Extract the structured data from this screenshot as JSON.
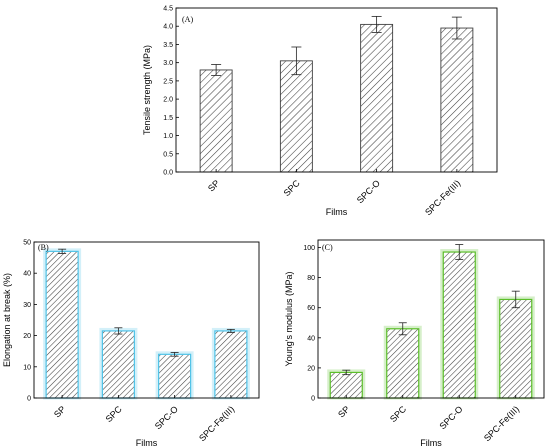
{
  "chart_data": [
    {
      "panel": "(A)",
      "type": "bar",
      "categories": [
        "SP",
        "SPC",
        "SPC-O",
        "SPC-Fe(III)"
      ],
      "values": [
        2.8,
        3.05,
        4.05,
        3.95
      ],
      "errors": [
        0.15,
        0.38,
        0.22,
        0.3
      ],
      "xlabel": "Films",
      "ylabel": "Tensile strength (MPa)",
      "ylim": [
        0.0,
        4.5
      ],
      "yticks": [
        "0.0",
        "0.5",
        "1.0",
        "1.5",
        "2.0",
        "2.5",
        "3.0",
        "3.5",
        "4.0",
        "4.5"
      ],
      "bar_color": "#404040",
      "hatch_color": "#404040",
      "grid": false
    },
    {
      "panel": "(B)",
      "type": "bar",
      "categories": [
        "SP",
        "SPC",
        "SPC-O",
        "SPC-Fe(III)"
      ],
      "values": [
        47.0,
        21.5,
        14.0,
        21.5
      ],
      "errors": [
        0.7,
        1.0,
        0.6,
        0.5
      ],
      "xlabel": "Films",
      "ylabel": "Elongation at break (%)",
      "ylim": [
        0,
        50
      ],
      "yticks": [
        "0",
        "10",
        "20",
        "30",
        "40",
        "50"
      ],
      "bar_color": "#4fc3e8",
      "hatch_color": "#404040",
      "grid": false
    },
    {
      "panel": "(C)",
      "type": "bar",
      "categories": [
        "SP",
        "SPC",
        "SPC-O",
        "SPC-Fe(III)"
      ],
      "values": [
        17.0,
        46.0,
        97.0,
        65.5
      ],
      "errors": [
        1.5,
        4.0,
        5.0,
        5.5
      ],
      "xlabel": "Films",
      "ylabel": "Young's modulus (MPa)",
      "ylim": [
        0,
        105
      ],
      "yticks": [
        "0",
        "20",
        "40",
        "60",
        "80",
        "100"
      ],
      "bar_color": "#5cbf2a",
      "hatch_color": "#404040",
      "grid": false
    }
  ]
}
